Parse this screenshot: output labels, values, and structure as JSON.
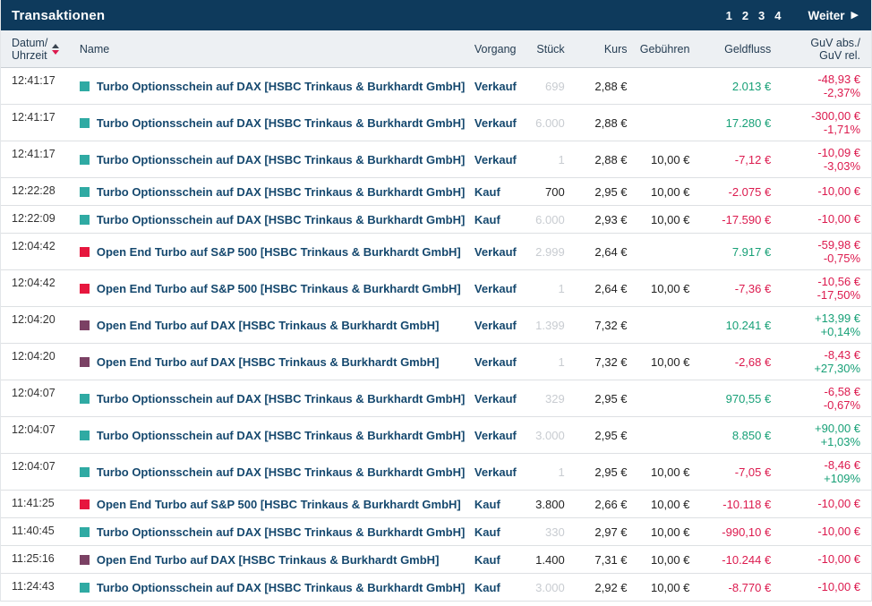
{
  "colors": {
    "navy": "#0e3a5c",
    "positive": "#17a077",
    "negative": "#dc1a4e",
    "teal_icon": "#2faaa3",
    "red_icon": "#e6173e",
    "purple_icon": "#7b4164"
  },
  "titlebar": {
    "title": "Transaktionen",
    "pages": [
      "1",
      "2",
      "3",
      "4"
    ],
    "next_label": "Weiter",
    "next_icon": "▶"
  },
  "table": {
    "columns": {
      "datetime_line1": "Datum/",
      "datetime_line2": "Uhrzeit",
      "name": "Name",
      "vorgang": "Vorgang",
      "stueck": "Stück",
      "kurs": "Kurs",
      "gebuehren": "Gebühren",
      "geldfluss": "Geldfluss",
      "guv_line1": "GuV abs./",
      "guv_line2": "GuV rel."
    },
    "rows": [
      {
        "time": "12:41:17",
        "icon": "teal",
        "name": "Turbo Optionsschein auf DAX [HSBC Trinkaus & Burkhardt GmbH]",
        "vorgang": "Verkauf",
        "stueck": {
          "text": "699",
          "muted": true
        },
        "kurs": "2,88 €",
        "gebuehren": "",
        "geldfluss": {
          "text": "2.013 €",
          "sign": "pos"
        },
        "guv": [
          {
            "text": "-48,93 €",
            "sign": "neg"
          },
          {
            "text": "-2,37%",
            "sign": "neg"
          }
        ],
        "tall": true
      },
      {
        "time": "12:41:17",
        "icon": "teal",
        "name": "Turbo Optionsschein auf DAX [HSBC Trinkaus & Burkhardt GmbH]",
        "vorgang": "Verkauf",
        "stueck": {
          "text": "6.000",
          "muted": true
        },
        "kurs": "2,88 €",
        "gebuehren": "",
        "geldfluss": {
          "text": "17.280 €",
          "sign": "pos"
        },
        "guv": [
          {
            "text": "-300,00 €",
            "sign": "neg"
          },
          {
            "text": "-1,71%",
            "sign": "neg"
          }
        ],
        "tall": true
      },
      {
        "time": "12:41:17",
        "icon": "teal",
        "name": "Turbo Optionsschein auf DAX [HSBC Trinkaus & Burkhardt GmbH]",
        "vorgang": "Verkauf",
        "stueck": {
          "text": "1",
          "muted": true
        },
        "kurs": "2,88 €",
        "gebuehren": "10,00 €",
        "geldfluss": {
          "text": "-7,12 €",
          "sign": "neg"
        },
        "guv": [
          {
            "text": "-10,09 €",
            "sign": "neg"
          },
          {
            "text": "-3,03%",
            "sign": "neg"
          }
        ],
        "tall": true
      },
      {
        "time": "12:22:28",
        "icon": "teal",
        "name": "Turbo Optionsschein auf DAX [HSBC Trinkaus & Burkhardt GmbH]",
        "vorgang": "Kauf",
        "stueck": {
          "text": "700",
          "muted": false
        },
        "kurs": "2,95 €",
        "gebuehren": "10,00 €",
        "geldfluss": {
          "text": "-2.075 €",
          "sign": "neg"
        },
        "guv": [
          {
            "text": "-10,00 €",
            "sign": "neg"
          }
        ],
        "tall": false
      },
      {
        "time": "12:22:09",
        "icon": "teal",
        "name": "Turbo Optionsschein auf DAX [HSBC Trinkaus & Burkhardt GmbH]",
        "vorgang": "Kauf",
        "stueck": {
          "text": "6.000",
          "muted": true
        },
        "kurs": "2,93 €",
        "gebuehren": "10,00 €",
        "geldfluss": {
          "text": "-17.590 €",
          "sign": "neg"
        },
        "guv": [
          {
            "text": "-10,00 €",
            "sign": "neg"
          }
        ],
        "tall": false
      },
      {
        "time": "12:04:42",
        "icon": "red",
        "name": "Open End Turbo auf S&P 500 [HSBC Trinkaus & Burkhardt GmbH]",
        "vorgang": "Verkauf",
        "stueck": {
          "text": "2.999",
          "muted": true
        },
        "kurs": "2,64 €",
        "gebuehren": "",
        "geldfluss": {
          "text": "7.917 €",
          "sign": "pos"
        },
        "guv": [
          {
            "text": "-59,98 €",
            "sign": "neg"
          },
          {
            "text": "-0,75%",
            "sign": "neg"
          }
        ],
        "tall": true
      },
      {
        "time": "12:04:42",
        "icon": "red",
        "name": "Open End Turbo auf S&P 500 [HSBC Trinkaus & Burkhardt GmbH]",
        "vorgang": "Verkauf",
        "stueck": {
          "text": "1",
          "muted": true
        },
        "kurs": "2,64 €",
        "gebuehren": "10,00 €",
        "geldfluss": {
          "text": "-7,36 €",
          "sign": "neg"
        },
        "guv": [
          {
            "text": "-10,56 €",
            "sign": "neg"
          },
          {
            "text": "-17,50%",
            "sign": "neg"
          }
        ],
        "tall": true
      },
      {
        "time": "12:04:20",
        "icon": "purple",
        "name": "Open End Turbo auf DAX [HSBC Trinkaus & Burkhardt GmbH]",
        "vorgang": "Verkauf",
        "stueck": {
          "text": "1.399",
          "muted": true
        },
        "kurs": "7,32 €",
        "gebuehren": "",
        "geldfluss": {
          "text": "10.241 €",
          "sign": "pos"
        },
        "guv": [
          {
            "text": "+13,99 €",
            "sign": "pos"
          },
          {
            "text": "+0,14%",
            "sign": "pos"
          }
        ],
        "tall": true
      },
      {
        "time": "12:04:20",
        "icon": "purple",
        "name": "Open End Turbo auf DAX [HSBC Trinkaus & Burkhardt GmbH]",
        "vorgang": "Verkauf",
        "stueck": {
          "text": "1",
          "muted": true
        },
        "kurs": "7,32 €",
        "gebuehren": "10,00 €",
        "geldfluss": {
          "text": "-2,68 €",
          "sign": "neg"
        },
        "guv": [
          {
            "text": "-8,43 €",
            "sign": "neg"
          },
          {
            "text": "+27,30%",
            "sign": "pos"
          }
        ],
        "tall": true
      },
      {
        "time": "12:04:07",
        "icon": "teal",
        "name": "Turbo Optionsschein auf DAX [HSBC Trinkaus & Burkhardt GmbH]",
        "vorgang": "Verkauf",
        "stueck": {
          "text": "329",
          "muted": true
        },
        "kurs": "2,95 €",
        "gebuehren": "",
        "geldfluss": {
          "text": "970,55 €",
          "sign": "pos"
        },
        "guv": [
          {
            "text": "-6,58 €",
            "sign": "neg"
          },
          {
            "text": "-0,67%",
            "sign": "neg"
          }
        ],
        "tall": true
      },
      {
        "time": "12:04:07",
        "icon": "teal",
        "name": "Turbo Optionsschein auf DAX [HSBC Trinkaus & Burkhardt GmbH]",
        "vorgang": "Verkauf",
        "stueck": {
          "text": "3.000",
          "muted": true
        },
        "kurs": "2,95 €",
        "gebuehren": "",
        "geldfluss": {
          "text": "8.850 €",
          "sign": "pos"
        },
        "guv": [
          {
            "text": "+90,00 €",
            "sign": "pos"
          },
          {
            "text": "+1,03%",
            "sign": "pos"
          }
        ],
        "tall": true
      },
      {
        "time": "12:04:07",
        "icon": "teal",
        "name": "Turbo Optionsschein auf DAX [HSBC Trinkaus & Burkhardt GmbH]",
        "vorgang": "Verkauf",
        "stueck": {
          "text": "1",
          "muted": true
        },
        "kurs": "2,95 €",
        "gebuehren": "10,00 €",
        "geldfluss": {
          "text": "-7,05 €",
          "sign": "neg"
        },
        "guv": [
          {
            "text": "-8,46 €",
            "sign": "neg"
          },
          {
            "text": "+109%",
            "sign": "pos"
          }
        ],
        "tall": true
      },
      {
        "time": "11:41:25",
        "icon": "red",
        "name": "Open End Turbo auf S&P 500 [HSBC Trinkaus & Burkhardt GmbH]",
        "vorgang": "Kauf",
        "stueck": {
          "text": "3.800",
          "muted": false
        },
        "kurs": "2,66 €",
        "gebuehren": "10,00 €",
        "geldfluss": {
          "text": "-10.118 €",
          "sign": "neg"
        },
        "guv": [
          {
            "text": "-10,00 €",
            "sign": "neg"
          }
        ],
        "tall": false
      },
      {
        "time": "11:40:45",
        "icon": "teal",
        "name": "Turbo Optionsschein auf DAX [HSBC Trinkaus & Burkhardt GmbH]",
        "vorgang": "Kauf",
        "stueck": {
          "text": "330",
          "muted": true
        },
        "kurs": "2,97 €",
        "gebuehren": "10,00 €",
        "geldfluss": {
          "text": "-990,10 €",
          "sign": "neg"
        },
        "guv": [
          {
            "text": "-10,00 €",
            "sign": "neg"
          }
        ],
        "tall": false
      },
      {
        "time": "11:25:16",
        "icon": "purple",
        "name": "Open End Turbo auf DAX [HSBC Trinkaus & Burkhardt GmbH]",
        "vorgang": "Kauf",
        "stueck": {
          "text": "1.400",
          "muted": false
        },
        "kurs": "7,31 €",
        "gebuehren": "10,00 €",
        "geldfluss": {
          "text": "-10.244 €",
          "sign": "neg"
        },
        "guv": [
          {
            "text": "-10,00 €",
            "sign": "neg"
          }
        ],
        "tall": false
      },
      {
        "time": "11:24:43",
        "icon": "teal",
        "name": "Turbo Optionsschein auf DAX [HSBC Trinkaus & Burkhardt GmbH]",
        "vorgang": "Kauf",
        "stueck": {
          "text": "3.000",
          "muted": true
        },
        "kurs": "2,92 €",
        "gebuehren": "10,00 €",
        "geldfluss": {
          "text": "-8.770 €",
          "sign": "neg"
        },
        "guv": [
          {
            "text": "-10,00 €",
            "sign": "neg"
          }
        ],
        "tall": false
      }
    ]
  }
}
